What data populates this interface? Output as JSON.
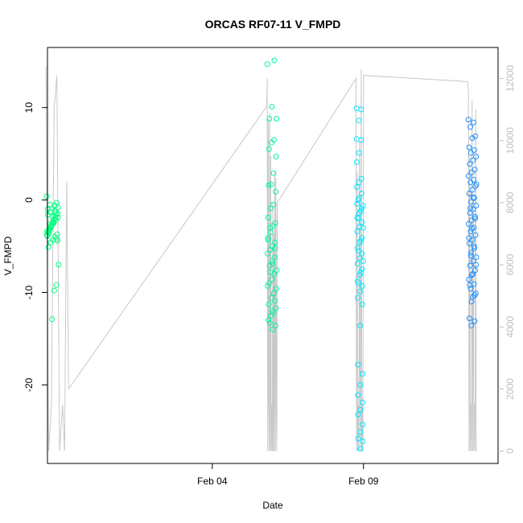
{
  "chart_data": {
    "type": "scatter",
    "title": "ORCAS RF07-11 V_FMPD",
    "xlabel": "Date",
    "ylabel": "V_FMPD",
    "x_ticks": [
      "Feb 04",
      "Feb 09"
    ],
    "y_ticks": [
      -20,
      -10,
      0,
      10
    ],
    "y2_ticks": [
      0,
      2000,
      4000,
      6000,
      8000,
      10000,
      12000
    ],
    "xlim": [
      "Jan 29",
      "Feb 13"
    ],
    "ylim": [
      -28.5,
      16.5
    ],
    "y2lim": [
      -400,
      13000
    ],
    "grid": false,
    "colors": {
      "altitude_trace": "#c8c8c8",
      "right_axis": "#bebebe",
      "flight_1": "#00ff7f",
      "flight_2": "#00f5a0",
      "flight_3": "#00e5ff",
      "flight_4": "#1e90ff"
    },
    "altitude_trace": {
      "name": "altitude",
      "x": [
        "Jan 29",
        "Jan 29",
        "Jan 29",
        "Jan 29",
        "Jan 29",
        "Jan 29",
        "Jan 30",
        "Jan 30",
        "Jan 30",
        "Jan 30",
        "Feb 05",
        "Feb 05",
        "Feb 05",
        "Feb 05",
        "Feb 05",
        "Feb 05",
        "Feb 05",
        "Feb 05",
        "Feb 05",
        "Feb 05",
        "Feb 05",
        "Feb 05",
        "Feb 05",
        "Feb 05",
        "Feb 05",
        "Feb 05",
        "Feb 05",
        "Feb 05",
        "Feb 05",
        "Feb 05",
        "Feb 05",
        "Feb 05",
        "Feb 08",
        "Feb 08",
        "Feb 08",
        "Feb 08",
        "Feb 08",
        "Feb 08",
        "Feb 08",
        "Feb 08",
        "Feb 08",
        "Feb 08",
        "Feb 08",
        "Feb 08",
        "Feb 08",
        "Feb 08",
        "Feb 12",
        "Feb 12",
        "Feb 12",
        "Feb 12",
        "Feb 12",
        "Feb 12",
        "Feb 12",
        "Feb 12",
        "Feb 12",
        "Feb 12",
        "Feb 12",
        "Feb 12",
        "Feb 12",
        "Feb 12",
        "Feb 12",
        "Feb 12"
      ],
      "y": [
        12400,
        0,
        1500,
        11000,
        12100,
        0,
        1500,
        0,
        8700,
        2000,
        11100,
        12000,
        0,
        10700,
        1500,
        0,
        10900,
        0,
        9500,
        0,
        1500,
        0,
        8000,
        0,
        7000,
        0,
        9000,
        0,
        8800,
        1500,
        0,
        8000,
        12000,
        0,
        9000,
        0,
        1500,
        0,
        10000,
        1500,
        0,
        12300,
        0,
        1500,
        0,
        12100,
        11900,
        11500,
        0,
        9500,
        0,
        1500,
        0,
        11300,
        0,
        8000,
        0,
        1500,
        0,
        11000,
        0,
        0
      ]
    },
    "series": [
      {
        "color": "#00ff7f",
        "x": [
          "Jan 29",
          "Jan 29",
          "Jan 29",
          "Jan 29",
          "Jan 29",
          "Jan 29",
          "Jan 29",
          "Jan 29",
          "Jan 29",
          "Jan 29",
          "Jan 29",
          "Jan 29",
          "Jan 29",
          "Jan 29",
          "Jan 29",
          "Jan 29",
          "Jan 29",
          "Jan 29",
          "Jan 29",
          "Jan 29",
          "Jan 29",
          "Jan 29",
          "Jan 29",
          "Jan 29",
          "Jan 29",
          "Jan 29",
          "Jan 29",
          "Jan 29",
          "Jan 29",
          "Jan 29",
          "Jan 29",
          "Jan 29",
          "Jan 29",
          "Jan 29",
          "Jan 29",
          "Jan 29",
          "Jan 29",
          "Jan 29",
          "Jan 29",
          "Jan 29",
          "Jan 29",
          "Jan 29",
          "Jan 29",
          "Jan 29",
          "Jan 29"
        ],
        "y": [
          0.4,
          -0.3,
          -0.6,
          -0.9,
          -1.3,
          -1.6,
          -1.9,
          -2.2,
          -2.5,
          -2.8,
          -3.1,
          -3.4,
          -3.7,
          -4.0,
          -4.3,
          -4.6,
          -5.1,
          -7.0,
          -9.2,
          -9.8,
          -12.9,
          -0.5,
          -1.0,
          -1.5,
          -2.0,
          -2.4,
          -2.9,
          -3.3,
          -3.8,
          -4.2,
          -1.2,
          -1.8,
          -2.6,
          -3.5,
          -0.8,
          -1.4,
          -2.1,
          -2.7,
          -3.2,
          -3.9,
          -4.4,
          -1.7,
          -2.3,
          -3.0,
          -3.6
        ]
      },
      {
        "color": "#00f5a0",
        "x": [
          "Feb 05",
          "Feb 05",
          "Feb 05",
          "Feb 05",
          "Feb 05",
          "Feb 05",
          "Feb 05",
          "Feb 05",
          "Feb 05",
          "Feb 05",
          "Feb 05",
          "Feb 05",
          "Feb 05",
          "Feb 05",
          "Feb 05",
          "Feb 05",
          "Feb 05",
          "Feb 05",
          "Feb 05",
          "Feb 05",
          "Feb 05",
          "Feb 05",
          "Feb 05",
          "Feb 05",
          "Feb 05",
          "Feb 05",
          "Feb 05",
          "Feb 05",
          "Feb 05",
          "Feb 05",
          "Feb 05",
          "Feb 05",
          "Feb 05",
          "Feb 05",
          "Feb 05",
          "Feb 05",
          "Feb 05",
          "Feb 05",
          "Feb 05",
          "Feb 05",
          "Feb 05",
          "Feb 05",
          "Feb 05",
          "Feb 05",
          "Feb 05",
          "Feb 05",
          "Feb 05",
          "Feb 05",
          "Feb 05",
          "Feb 05"
        ],
        "y": [
          14.7,
          15.1,
          10.1,
          8.8,
          8.8,
          6.5,
          6.2,
          5.5,
          4.7,
          2.9,
          1.7,
          1.6,
          0.9,
          -0.5,
          -0.9,
          -1.9,
          -2.5,
          -2.8,
          -3.0,
          -4.1,
          -4.6,
          -5.0,
          -5.4,
          -5.8,
          -6.2,
          -6.6,
          -7.1,
          -7.6,
          -8.0,
          -8.6,
          -9.0,
          -9.6,
          -10.1,
          -10.6,
          -11.3,
          -11.7,
          -12.2,
          -12.5,
          -13.0,
          -13.6,
          -14.0,
          -3.5,
          -4.3,
          -5.2,
          -6.9,
          -7.8,
          -9.3,
          -10.9,
          -12.0,
          -13.3
        ]
      },
      {
        "color": "#00e5ff",
        "x": [
          "Feb 08",
          "Feb 08",
          "Feb 08",
          "Feb 08",
          "Feb 08",
          "Feb 08",
          "Feb 08",
          "Feb 08",
          "Feb 08",
          "Feb 08",
          "Feb 08",
          "Feb 08",
          "Feb 08",
          "Feb 08",
          "Feb 08",
          "Feb 08",
          "Feb 08",
          "Feb 08",
          "Feb 08",
          "Feb 08",
          "Feb 08",
          "Feb 08",
          "Feb 08",
          "Feb 08",
          "Feb 08",
          "Feb 08",
          "Feb 08",
          "Feb 08",
          "Feb 08",
          "Feb 08",
          "Feb 08",
          "Feb 08",
          "Feb 08",
          "Feb 08",
          "Feb 08",
          "Feb 08",
          "Feb 08",
          "Feb 08",
          "Feb 08",
          "Feb 08",
          "Feb 08",
          "Feb 08",
          "Feb 08",
          "Feb 08",
          "Feb 08",
          "Feb 08",
          "Feb 08",
          "Feb 08",
          "Feb 08",
          "Feb 08",
          "Feb 08",
          "Feb 08",
          "Feb 08",
          "Feb 08",
          "Feb 08"
        ],
        "y": [
          9.9,
          9.8,
          8.6,
          6.6,
          6.5,
          5.1,
          4.1,
          2.3,
          1.9,
          1.4,
          0.7,
          0.2,
          -0.4,
          -0.9,
          -1.4,
          -1.9,
          -2.4,
          -2.9,
          -3.4,
          -4.1,
          -4.6,
          -5.2,
          -5.8,
          -6.3,
          -6.9,
          -7.5,
          -8.1,
          -8.8,
          -9.3,
          -9.9,
          -10.6,
          -11.3,
          -13.6,
          -17.8,
          -18.8,
          -20.0,
          -21.1,
          -21.9,
          -22.7,
          -23.2,
          -24.3,
          -25.1,
          -25.8,
          -26.1,
          -26.9,
          0.0,
          -0.6,
          -1.2,
          -2.0,
          -3.0,
          -4.4,
          -5.5,
          -6.6,
          -7.8,
          -9.0
        ]
      },
      {
        "color": "#1e90ff",
        "x": [
          "Feb 12",
          "Feb 12",
          "Feb 12",
          "Feb 12",
          "Feb 12",
          "Feb 12",
          "Feb 12",
          "Feb 12",
          "Feb 12",
          "Feb 12",
          "Feb 12",
          "Feb 12",
          "Feb 12",
          "Feb 12",
          "Feb 12",
          "Feb 12",
          "Feb 12",
          "Feb 12",
          "Feb 12",
          "Feb 12",
          "Feb 12",
          "Feb 12",
          "Feb 12",
          "Feb 12",
          "Feb 12",
          "Feb 12",
          "Feb 12",
          "Feb 12",
          "Feb 12",
          "Feb 12",
          "Feb 12",
          "Feb 12",
          "Feb 12",
          "Feb 12",
          "Feb 12",
          "Feb 12",
          "Feb 12",
          "Feb 12",
          "Feb 12",
          "Feb 12",
          "Feb 12",
          "Feb 12",
          "Feb 12",
          "Feb 12",
          "Feb 12",
          "Feb 12",
          "Feb 12",
          "Feb 12",
          "Feb 12",
          "Feb 12",
          "Feb 12",
          "Feb 12",
          "Feb 12",
          "Feb 12",
          "Feb 12",
          "Feb 12",
          "Feb 12",
          "Feb 12",
          "Feb 12",
          "Feb 12"
        ],
        "y": [
          8.7,
          8.4,
          7.9,
          6.9,
          6.7,
          5.7,
          5.4,
          5.1,
          4.7,
          4.3,
          3.9,
          3.3,
          3.0,
          2.6,
          2.2,
          1.9,
          1.5,
          1.1,
          0.7,
          0.2,
          -0.2,
          -0.6,
          -1.0,
          -1.4,
          -1.8,
          -2.2,
          -2.6,
          -3.0,
          -3.4,
          -3.8,
          -4.3,
          -4.7,
          -5.2,
          -5.7,
          -6.2,
          -6.6,
          -7.1,
          -7.6,
          -8.1,
          -8.6,
          -9.1,
          -9.6,
          -10.1,
          -10.5,
          -12.8,
          -13.1,
          -13.6,
          1.7,
          0.3,
          -0.9,
          -2.0,
          -3.1,
          -4.1,
          -5.0,
          -6.0,
          -7.0,
          -8.0,
          -9.2,
          -10.3,
          -11.0
        ]
      }
    ]
  }
}
